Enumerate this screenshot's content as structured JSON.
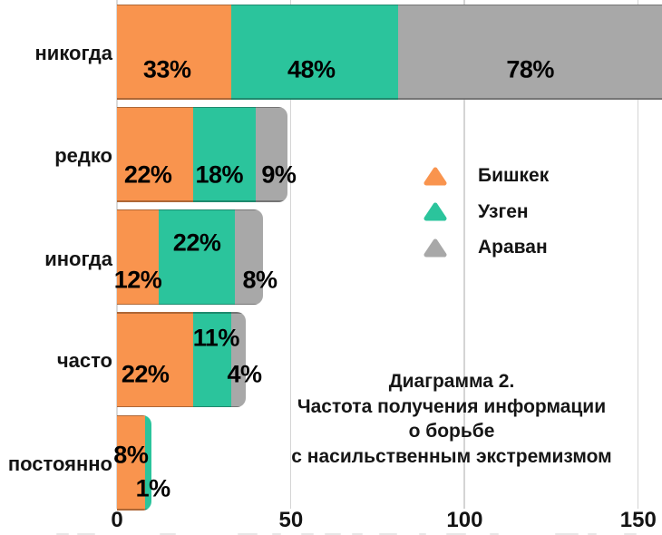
{
  "chart_data": {
    "type": "bar",
    "orientation": "horizontal",
    "stacked": true,
    "title_lines": [
      "Диаграмма 2.",
      "Частота получения информации",
      "о борьбе",
      "с насильственным экстремизмом"
    ],
    "categories": [
      "никогда",
      "редко",
      "иногда",
      "часто",
      "постоянно"
    ],
    "series": [
      {
        "name": "Бишкек",
        "color": "#f9944e",
        "values": [
          33,
          22,
          12,
          22,
          8
        ]
      },
      {
        "name": "Узген",
        "color": "#2bc49c",
        "values": [
          48,
          18,
          22,
          11,
          1
        ]
      },
      {
        "name": "Араван",
        "color": "#a8a8a8",
        "values": [
          78,
          9,
          8,
          4,
          0
        ]
      }
    ],
    "value_suffix": "%",
    "xlim": [
      0,
      150
    ],
    "xticks": [
      "0",
      "50",
      "100",
      "150"
    ],
    "grid": true,
    "legend_position": "center-right",
    "legend_marker": "triangle",
    "background": "#ffffff",
    "gridline_color": "#d4d4d4",
    "label_color": "#000000",
    "text_color": "#141414"
  }
}
